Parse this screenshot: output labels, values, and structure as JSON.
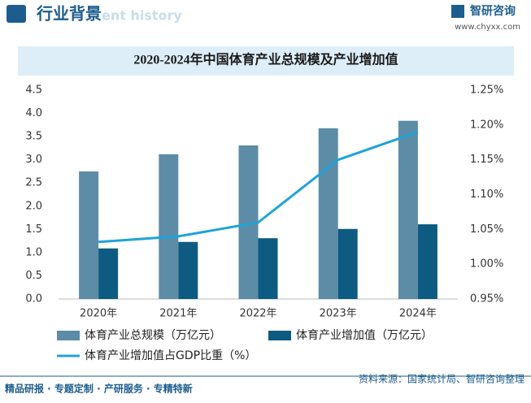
{
  "header": {
    "title": "行业背景",
    "watermark": "ent history",
    "brand": "智研咨询",
    "website": "www.chyxx.com"
  },
  "chart_data": {
    "type": "bar",
    "title": "2020-2024年中国体育产业总规模及产业增加值",
    "categories": [
      "2020年",
      "2021年",
      "2022年",
      "2023年",
      "2024年"
    ],
    "series": [
      {
        "name": "体育产业总规模（万亿元）",
        "type": "bar",
        "color": "#5d8ca6",
        "values": [
          2.75,
          3.12,
          3.31,
          3.68,
          3.84
        ]
      },
      {
        "name": "体育产业增加值（万亿元）",
        "type": "bar",
        "color": "#0d5b80",
        "values": [
          1.09,
          1.23,
          1.31,
          1.51,
          1.61
        ]
      },
      {
        "name": "体育产业增加值占GDP比重（%）",
        "type": "line",
        "axis": "y2",
        "color": "#1fa3d9",
        "values": [
          1.032,
          1.04,
          1.06,
          1.15,
          1.19
        ]
      }
    ],
    "ylim": [
      0,
      4.5
    ],
    "yticks": [
      {
        "value": 0,
        "label": "0.0"
      },
      0.5,
      {
        "value": 1,
        "label": "1.0"
      },
      1.5,
      {
        "value": 2,
        "label": "2.0"
      },
      2.5,
      {
        "value": 3,
        "label": "3.0"
      },
      3.5,
      {
        "value": 4,
        "label": "4.0"
      },
      4.5
    ],
    "y2lim": [
      0.95,
      1.25
    ],
    "y2ticks": [
      {
        "value": 0.95,
        "label": "0.95%"
      },
      {
        "value": 1,
        "label": "1.00%"
      },
      {
        "value": 1.05,
        "label": "1.05%"
      },
      {
        "value": 1.1,
        "label": "1.10%"
      },
      {
        "value": 1.15,
        "label": "1.15%"
      },
      {
        "value": 1.2,
        "label": "1.20%"
      },
      {
        "value": 1.25,
        "label": "1.25%"
      }
    ],
    "grid": false
  },
  "footer": {
    "left": "精品研报 · 专题定制 · 产研服务 · 专精特新",
    "source": "资料来源：国家统计局、智研咨询整理"
  }
}
